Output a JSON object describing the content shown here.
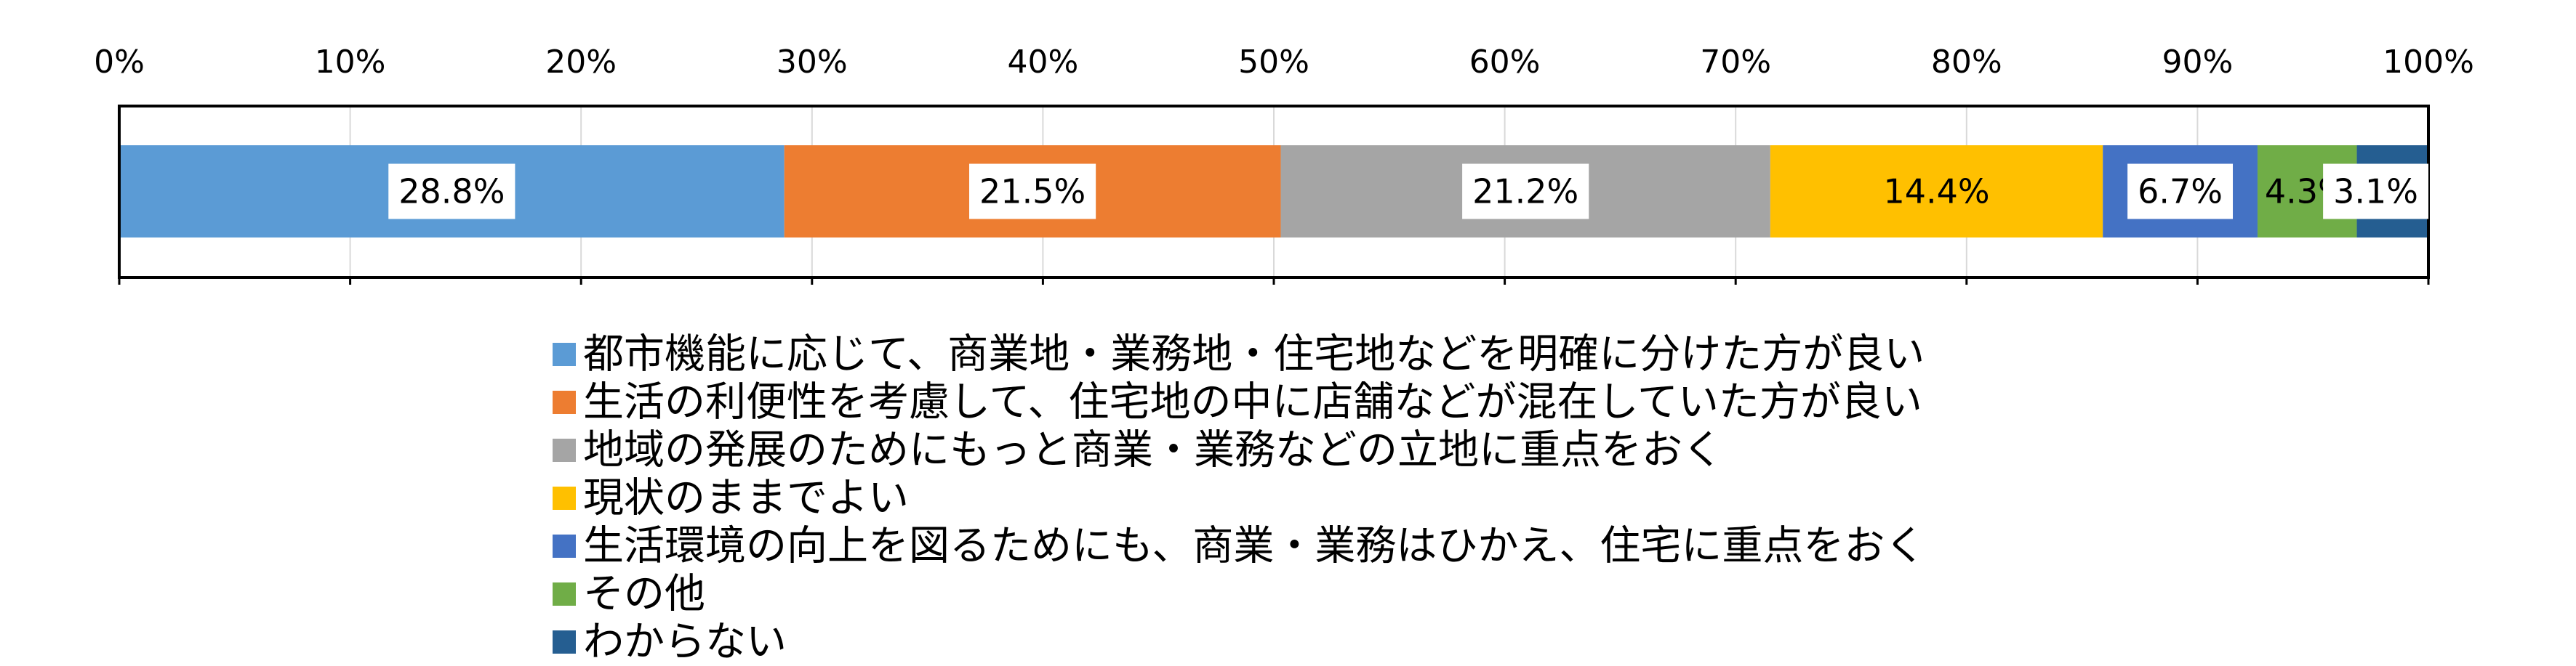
{
  "chart_data": {
    "type": "bar",
    "orientation": "horizontal-stacked-100",
    "xlim": [
      0,
      100
    ],
    "x_ticks": [
      "0%",
      "10%",
      "20%",
      "30%",
      "40%",
      "50%",
      "60%",
      "70%",
      "80%",
      "90%",
      "100%"
    ],
    "grid": true,
    "legend_position": "bottom",
    "series": [
      {
        "name": "都市機能に応じて、商業地・業務地・住宅地などを明確に分けた方が良い",
        "value": 28.8,
        "label": "28.8%",
        "color": "#5B9BD5",
        "label_box": true
      },
      {
        "name": "生活の利便性を考慮して、住宅地の中に店舗などが混在していた方が良い",
        "value": 21.5,
        "label": "21.5%",
        "color": "#ED7D31",
        "label_box": true
      },
      {
        "name": "地域の発展のためにもっと商業・業務などの立地に重点をおく",
        "value": 21.2,
        "label": "21.2%",
        "color": "#A5A5A5",
        "label_box": true
      },
      {
        "name": "現状のままでよい",
        "value": 14.4,
        "label": "14.4%",
        "color": "#FFC000",
        "label_box": false
      },
      {
        "name": "生活環境の向上を図るためにも、商業・業務はひかえ、住宅に重点をおく",
        "value": 6.7,
        "label": "6.7%",
        "color": "#4472C4",
        "label_box": true
      },
      {
        "name": "その他",
        "value": 4.3,
        "label": "4.3%",
        "color": "#70AD47",
        "label_box": false
      },
      {
        "name": "わからない",
        "value": 3.1,
        "label": "3.1%",
        "color": "#255E91",
        "label_box": true
      }
    ]
  }
}
